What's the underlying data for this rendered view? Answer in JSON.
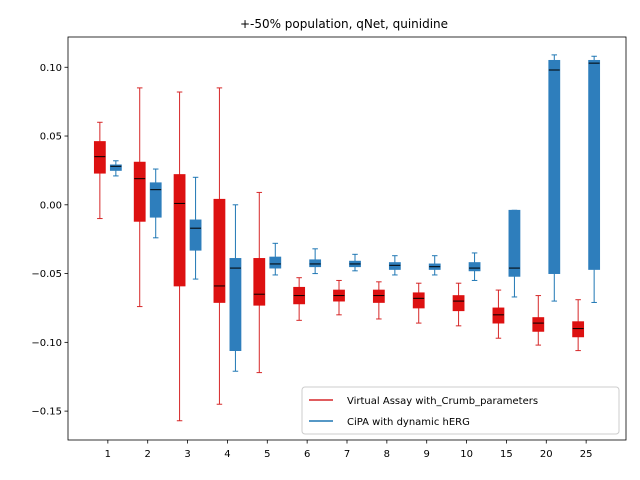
{
  "chart_data": {
    "type": "box",
    "title": "+-50% population, qNet, quinidine",
    "xlabel": "",
    "ylabel": "",
    "categories": [
      "1",
      "2",
      "3",
      "4",
      "5",
      "6",
      "7",
      "8",
      "9",
      "10",
      "15",
      "20",
      "25"
    ],
    "ylim": [
      -0.171,
      0.122
    ],
    "yticks": [
      0.1,
      0.05,
      0.0,
      -0.05,
      -0.1,
      -0.15
    ],
    "ytick_labels": [
      "0.10",
      "0.05",
      "0.00",
      "−0.05",
      "−0.10",
      "−0.15"
    ],
    "legend_position": "lower right",
    "grid": false,
    "series": [
      {
        "name": "Virtual Assay with_Crumb_parameters",
        "color": "#d62728",
        "box_color": "#dd1111",
        "boxes": [
          {
            "whislo": -0.01,
            "q1": 0.023,
            "med": 0.035,
            "q3": 0.046,
            "whishi": 0.06
          },
          {
            "whislo": -0.074,
            "q1": -0.012,
            "med": 0.019,
            "q3": 0.031,
            "whishi": 0.085
          },
          {
            "whislo": -0.157,
            "q1": -0.059,
            "med": 0.001,
            "q3": 0.022,
            "whishi": 0.082
          },
          {
            "whislo": -0.145,
            "q1": -0.071,
            "med": -0.059,
            "q3": 0.004,
            "whishi": 0.085
          },
          {
            "whislo": -0.122,
            "q1": -0.073,
            "med": -0.065,
            "q3": -0.039,
            "whishi": 0.009
          },
          {
            "whislo": -0.084,
            "q1": -0.072,
            "med": -0.066,
            "q3": -0.06,
            "whishi": -0.053
          },
          {
            "whislo": -0.08,
            "q1": -0.07,
            "med": -0.066,
            "q3": -0.062,
            "whishi": -0.055
          },
          {
            "whislo": -0.083,
            "q1": -0.071,
            "med": -0.066,
            "q3": -0.062,
            "whishi": -0.056
          },
          {
            "whislo": -0.086,
            "q1": -0.075,
            "med": -0.068,
            "q3": -0.064,
            "whishi": -0.057
          },
          {
            "whislo": -0.088,
            "q1": -0.077,
            "med": -0.07,
            "q3": -0.066,
            "whishi": -0.057
          },
          {
            "whislo": -0.097,
            "q1": -0.086,
            "med": -0.08,
            "q3": -0.075,
            "whishi": -0.062
          },
          {
            "whislo": -0.102,
            "q1": -0.092,
            "med": -0.086,
            "q3": -0.082,
            "whishi": -0.066
          },
          {
            "whislo": -0.106,
            "q1": -0.096,
            "med": -0.09,
            "q3": -0.085,
            "whishi": -0.069
          }
        ]
      },
      {
        "name": "CiPA with dynamic hERG",
        "color": "#1f77b4",
        "box_color": "#2e7ebc",
        "boxes": [
          {
            "whislo": 0.021,
            "q1": 0.025,
            "med": 0.028,
            "q3": 0.029,
            "whishi": 0.032
          },
          {
            "whislo": -0.024,
            "q1": -0.009,
            "med": 0.011,
            "q3": 0.016,
            "whishi": 0.026
          },
          {
            "whislo": -0.054,
            "q1": -0.033,
            "med": -0.017,
            "q3": -0.011,
            "whishi": 0.02
          },
          {
            "whislo": -0.121,
            "q1": -0.106,
            "med": -0.046,
            "q3": -0.039,
            "whishi": 0.0
          },
          {
            "whislo": -0.051,
            "q1": -0.046,
            "med": -0.043,
            "q3": -0.038,
            "whishi": -0.028
          },
          {
            "whislo": -0.05,
            "q1": -0.045,
            "med": -0.043,
            "q3": -0.04,
            "whishi": -0.032
          },
          {
            "whislo": -0.048,
            "q1": -0.045,
            "med": -0.043,
            "q3": -0.041,
            "whishi": -0.036
          },
          {
            "whislo": -0.051,
            "q1": -0.047,
            "med": -0.044,
            "q3": -0.042,
            "whishi": -0.037
          },
          {
            "whislo": -0.051,
            "q1": -0.047,
            "med": -0.045,
            "q3": -0.043,
            "whishi": -0.037
          },
          {
            "whislo": -0.055,
            "q1": -0.048,
            "med": -0.046,
            "q3": -0.042,
            "whishi": -0.035
          },
          {
            "whislo": -0.067,
            "q1": -0.052,
            "med": -0.046,
            "q3": -0.004,
            "whishi": -0.004
          },
          {
            "whislo": -0.07,
            "q1": -0.05,
            "med": 0.098,
            "q3": 0.105,
            "whishi": 0.109
          },
          {
            "whislo": -0.071,
            "q1": -0.047,
            "med": 0.103,
            "q3": 0.105,
            "whishi": 0.108
          }
        ]
      }
    ]
  }
}
